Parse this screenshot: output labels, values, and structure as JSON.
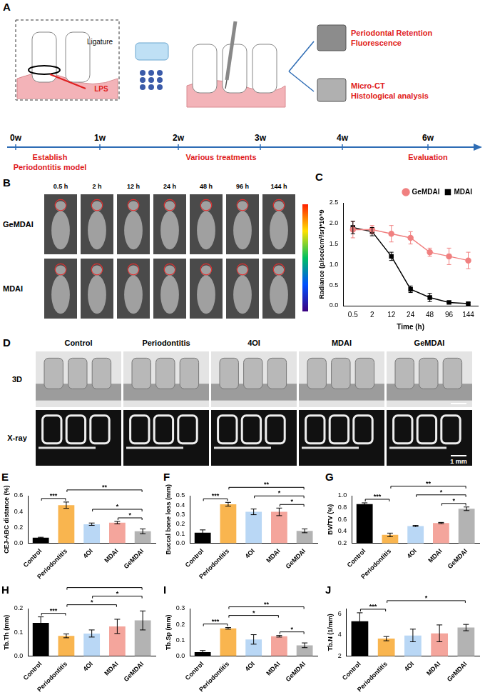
{
  "figure": {
    "A": {
      "letter": "A",
      "ligature": "Ligature",
      "lps": "LPS",
      "outcomes": [
        [
          "Periodontal Retention",
          "Fluorescence"
        ],
        [
          "Micro-CT",
          "Histological analysis"
        ]
      ],
      "timeline": [
        "0w",
        "1w",
        "2w",
        "3w",
        "4w",
        "6w"
      ],
      "stages": [
        [
          "Establish",
          "Periodontitis model"
        ],
        [
          "Various treatments"
        ],
        [
          "Evaluation"
        ]
      ]
    },
    "B": {
      "letter": "B",
      "times": [
        "0.5 h",
        "2 h",
        "12 h",
        "24 h",
        "48 h",
        "96 h",
        "144 h"
      ],
      "rows": [
        "GeMDAI",
        "MDAI"
      ]
    },
    "D": {
      "letter": "D",
      "groups": [
        "Control",
        "Periodontitis",
        "4OI",
        "MDAI",
        "GeMDAI"
      ],
      "rows": [
        "3D",
        "X-ray"
      ],
      "scale_bar": "1 mm"
    }
  },
  "chart_data": [
    {
      "letter": "C",
      "type": "line",
      "categories": [
        "0.5",
        "2",
        "12",
        "24",
        "48",
        "96",
        "144"
      ],
      "x_label": "Time (h)",
      "y_label": "Radiance (p/sec/cm²/sr)*10^9",
      "ylim": [
        0,
        2.5
      ],
      "yticks": [
        {
          "value": 0,
          "label": "0.0"
        },
        0.5,
        {
          "value": 1,
          "label": "1.0"
        },
        1.5,
        {
          "value": 2,
          "label": "2.0"
        },
        2.5
      ],
      "grid": false,
      "legend": "top-right",
      "series": [
        {
          "name": "GeMDAI",
          "color": "#f08080",
          "marker": "circle",
          "values": [
            1.85,
            1.85,
            1.75,
            1.65,
            1.3,
            1.2,
            1.1
          ],
          "errors": [
            0.2,
            0.1,
            0.2,
            0.15,
            0.1,
            0.2,
            0.2
          ]
        },
        {
          "name": "MDAI",
          "color": "#000000",
          "marker": "square",
          "values": [
            1.9,
            1.8,
            1.2,
            0.4,
            0.2,
            0.08,
            0.05
          ],
          "errors": [
            0.15,
            0.1,
            0.1,
            0.08,
            0.1,
            0.03,
            0.03
          ]
        }
      ]
    },
    {
      "letter": "E",
      "type": "bar",
      "categories": [
        "Control",
        "Periodontitis",
        "4OI",
        "MDAI",
        "GeMDAI"
      ],
      "colors": [
        "#000000",
        "#f9b54f",
        "#b9d7f5",
        "#f4a59c",
        "#b3b3b3"
      ],
      "values": [
        0.07,
        0.48,
        0.24,
        0.26,
        0.15
      ],
      "errors": [
        0.005,
        0.04,
        0.015,
        0.015,
        0.03
      ],
      "y_label": "CEJ-ABC distance (%)",
      "ylim": [
        0,
        0.6
      ],
      "yticks": [
        {
          "value": 0,
          "label": "0.0"
        },
        0.2,
        0.4,
        0.6
      ],
      "grid": false,
      "significance": [
        {
          "from": "Control",
          "to": "Periodontitis",
          "label": "***"
        },
        {
          "from": "Periodontitis",
          "to": "GeMDAI",
          "label": "**"
        },
        {
          "from": "4OI",
          "to": "GeMDAI",
          "label": "*"
        },
        {
          "from": "MDAI",
          "to": "GeMDAI",
          "label": "*"
        }
      ]
    },
    {
      "letter": "F",
      "type": "bar",
      "categories": [
        "Control",
        "Periodontitis",
        "4OI",
        "MDAI",
        "GeMDAI"
      ],
      "colors": [
        "#000000",
        "#f9b54f",
        "#b9d7f5",
        "#f4a59c",
        "#b3b3b3"
      ],
      "values": [
        0.11,
        0.41,
        0.33,
        0.33,
        0.13
      ],
      "errors": [
        0.03,
        0.02,
        0.03,
        0.04,
        0.02
      ],
      "y_label": "Buccal bone loss (mm)",
      "ylim": [
        0,
        0.5
      ],
      "yticks": [
        {
          "value": 0,
          "label": "0.0"
        },
        0.1,
        0.2,
        0.3,
        0.4,
        0.5
      ],
      "grid": false,
      "significance": [
        {
          "from": "Control",
          "to": "Periodontitis",
          "label": "***"
        },
        {
          "from": "Periodontitis",
          "to": "GeMDAI",
          "label": "**"
        },
        {
          "from": "4OI",
          "to": "GeMDAI",
          "label": "*"
        },
        {
          "from": "MDAI",
          "to": "GeMDAI",
          "label": "*"
        }
      ]
    },
    {
      "letter": "G",
      "type": "bar",
      "categories": [
        "Control",
        "Periodontitis",
        "4OI",
        "MDAI",
        "GeMDAI"
      ],
      "colors": [
        "#000000",
        "#f9b54f",
        "#b9d7f5",
        "#f4a59c",
        "#b3b3b3"
      ],
      "values": [
        0.86,
        0.34,
        0.49,
        0.54,
        0.78
      ],
      "errors": [
        0.02,
        0.03,
        0.01,
        0.01,
        0.03
      ],
      "y_label": "BV/TV (%)",
      "ylim": [
        0.2,
        1
      ],
      "yticks": [
        0.2,
        0.4,
        0.6,
        0.8,
        {
          "value": 1,
          "label": "1.0"
        }
      ],
      "grid": false,
      "significance": [
        {
          "from": "Control",
          "to": "Periodontitis",
          "label": "***"
        },
        {
          "from": "Periodontitis",
          "to": "GeMDAI",
          "label": "**"
        },
        {
          "from": "4OI",
          "to": "GeMDAI",
          "label": "*"
        },
        {
          "from": "MDAI",
          "to": "GeMDAI",
          "label": "*"
        }
      ]
    },
    {
      "letter": "H",
      "type": "bar",
      "categories": [
        "Control",
        "Periodontitis",
        "4OI",
        "MDAI",
        "GeMDAI"
      ],
      "colors": [
        "#000000",
        "#f9b54f",
        "#b9d7f5",
        "#f4a59c",
        "#b3b3b3"
      ],
      "values": [
        0.14,
        0.085,
        0.095,
        0.125,
        0.15
      ],
      "errors": [
        0.025,
        0.008,
        0.015,
        0.03,
        0.04
      ],
      "y_label": "Tb.Th (mm)",
      "ylim": [
        0,
        0.2
      ],
      "yticks": [
        {
          "value": 0,
          "label": "0.0"
        },
        0.1,
        0.2
      ],
      "grid": false,
      "significance": [
        {
          "from": "Control",
          "to": "Periodontitis",
          "label": "***"
        },
        {
          "from": "Periodontitis",
          "to": "GeMDAI",
          "label": "**"
        },
        {
          "from": "Periodontitis",
          "to": "MDAI",
          "label": "*"
        },
        {
          "from": "4OI",
          "to": "GeMDAI",
          "label": "*"
        }
      ]
    },
    {
      "letter": "I",
      "type": "bar",
      "categories": [
        "Control",
        "Periodontitis",
        "4OI",
        "MDAI",
        "GeMDAI"
      ],
      "colors": [
        "#000000",
        "#f9b54f",
        "#b9d7f5",
        "#f4a59c",
        "#b3b3b3"
      ],
      "values": [
        0.025,
        0.175,
        0.105,
        0.125,
        0.068
      ],
      "errors": [
        0.01,
        0.005,
        0.03,
        0.005,
        0.015
      ],
      "y_label": "Tb.Sp (mm)",
      "ylim": [
        0,
        0.3
      ],
      "yticks": [
        {
          "value": 0,
          "label": "0.0"
        },
        0.1,
        0.2,
        0.3
      ],
      "grid": false,
      "significance": [
        {
          "from": "Control",
          "to": "Periodontitis",
          "label": "***"
        },
        {
          "from": "Periodontitis",
          "to": "GeMDAI",
          "label": "**"
        },
        {
          "from": "Periodontitis",
          "to": "MDAI",
          "label": "*"
        },
        {
          "from": "MDAI",
          "to": "GeMDAI",
          "label": "*"
        }
      ]
    },
    {
      "letter": "J",
      "type": "bar",
      "categories": [
        "Control",
        "Periodontitis",
        "4OI",
        "MDAI",
        "GeMDAI"
      ],
      "colors": [
        "#000000",
        "#f9b54f",
        "#b9d7f5",
        "#f4a59c",
        "#b3b3b3"
      ],
      "values": [
        5.3,
        3.65,
        3.95,
        4.15,
        4.7
      ],
      "errors": [
        0.8,
        0.2,
        0.6,
        0.8,
        0.3
      ],
      "y_label": "Tb.N (1/mm)",
      "ylim": [
        2,
        6.5
      ],
      "yticks": [
        2,
        4,
        6
      ],
      "grid": false,
      "significance": [
        {
          "from": "Control",
          "to": "Periodontitis",
          "label": "***"
        },
        {
          "from": "Periodontitis",
          "to": "GeMDAI",
          "label": "*"
        }
      ]
    }
  ]
}
